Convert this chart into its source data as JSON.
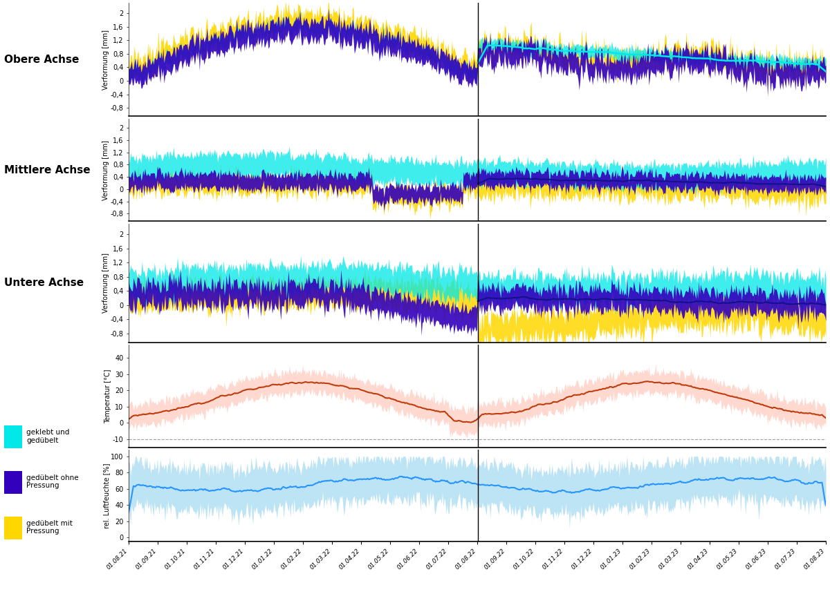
{
  "panel_labels_left": [
    "Obere Achse",
    "Mittlere Achse",
    "Untere Achse"
  ],
  "yticks_deform": [
    -0.8,
    -0.4,
    0,
    0.4,
    0.8,
    1.2,
    1.6,
    2
  ],
  "yticks_temp": [
    -10,
    0,
    10,
    20,
    30,
    40
  ],
  "yticks_humid": [
    0,
    20,
    40,
    60,
    80,
    100
  ],
  "ylim_deform": [
    -1.05,
    2.3
  ],
  "ylim_temp": [
    -15,
    48
  ],
  "ylim_humid": [
    -5,
    108
  ],
  "color_cyan": "#00E8E8",
  "color_purple": "#3300BB",
  "color_yellow": "#FFD700",
  "color_orange": "#BB3300",
  "color_orange_light": "#FFBBAA",
  "color_blue_dark": "#1E90FF",
  "color_blue_light": "#87CEEB",
  "legend_entries": [
    "geklebt und\ngedübelt",
    "gedübelt ohne\nPressung",
    "gedübelt mit\nPressung"
  ],
  "x_dates": [
    "01.08.21",
    "01.09.21",
    "01.10.21",
    "01.11.21",
    "01.12.21",
    "01.01.22",
    "01.02.22",
    "01.03.22",
    "01.04.22",
    "01.05.22",
    "01.06.22",
    "01.07.22",
    "01.08.22",
    "01.09.22",
    "01.10.22",
    "01.11.22",
    "01.12.22",
    "01.01.23",
    "01.02.23",
    "01.03.23",
    "01.04.23",
    "01.05.23",
    "01.06.23",
    "01.07.23",
    "01.08.23"
  ],
  "n_points": 730,
  "random_seed": 42
}
